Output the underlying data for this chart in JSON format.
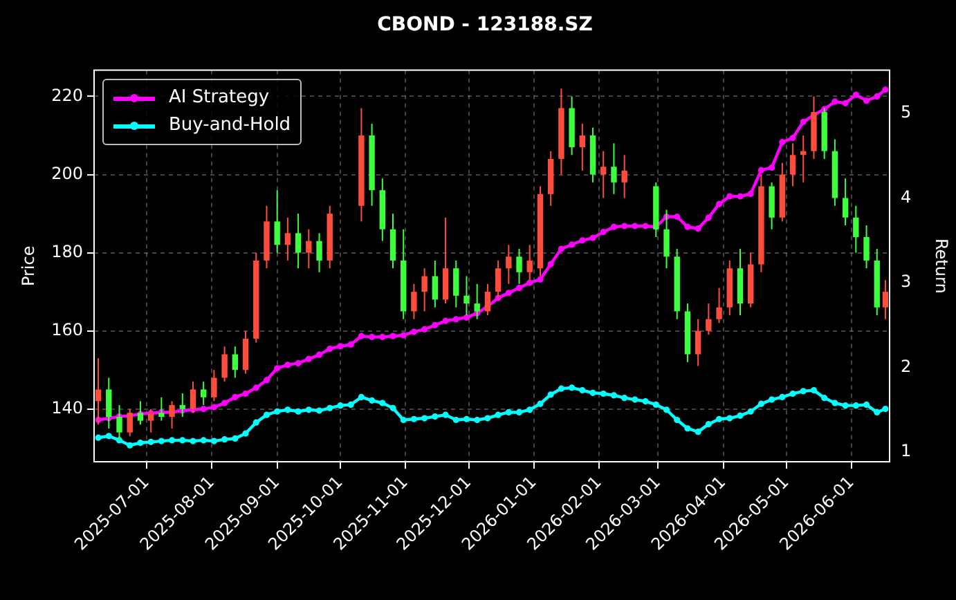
{
  "chart_data": {
    "type": "candlestick",
    "title": "CBOND - 123188.SZ",
    "ylabel": "Price",
    "y2label": "Return",
    "x": [
      "2025-06-08",
      "2025-06-13",
      "2025-06-18",
      "2025-06-23",
      "2025-06-28",
      "2025-07-03",
      "2025-07-08",
      "2025-07-13",
      "2025-07-18",
      "2025-07-23",
      "2025-07-28",
      "2025-08-02",
      "2025-08-07",
      "2025-08-12",
      "2025-08-17",
      "2025-08-22",
      "2025-08-27",
      "2025-09-01",
      "2025-09-06",
      "2025-09-11",
      "2025-09-16",
      "2025-09-21",
      "2025-09-26",
      "2025-10-01",
      "2025-10-06",
      "2025-10-11",
      "2025-10-16",
      "2025-10-21",
      "2025-10-26",
      "2025-10-31",
      "2025-11-05",
      "2025-11-10",
      "2025-11-15",
      "2025-11-20",
      "2025-11-25",
      "2025-11-30",
      "2025-12-05",
      "2025-12-10",
      "2025-12-15",
      "2025-12-20",
      "2025-12-25",
      "2025-12-30",
      "2026-01-04",
      "2026-01-09",
      "2026-01-14",
      "2026-01-19",
      "2026-01-24",
      "2026-01-29",
      "2026-02-03",
      "2026-02-08",
      "2026-02-13",
      "2026-02-18",
      "2026-02-23",
      "2026-02-28",
      "2026-03-05",
      "2026-03-10",
      "2026-03-15",
      "2026-03-20",
      "2026-03-25",
      "2026-03-30",
      "2026-04-04",
      "2026-04-09",
      "2026-04-14",
      "2026-04-19",
      "2026-04-24",
      "2026-04-29",
      "2026-05-04",
      "2026-05-09",
      "2026-05-14",
      "2026-05-19",
      "2026-05-24",
      "2026-05-29",
      "2026-06-03",
      "2026-06-08",
      "2026-06-13",
      "2026-06-17"
    ],
    "ohlc": [
      [
        142,
        153,
        136,
        145
      ],
      [
        145,
        148,
        135,
        138
      ],
      [
        138,
        141,
        132,
        134
      ],
      [
        134,
        140,
        133,
        139
      ],
      [
        139,
        142,
        136,
        137
      ],
      [
        137,
        140,
        134,
        139
      ],
      [
        139,
        143,
        137,
        138
      ],
      [
        138,
        142,
        135,
        141
      ],
      [
        141,
        144,
        138,
        140
      ],
      [
        140,
        147,
        139,
        145
      ],
      [
        145,
        147,
        141,
        143
      ],
      [
        143,
        150,
        142,
        148
      ],
      [
        148,
        156,
        147,
        154
      ],
      [
        154,
        156,
        148,
        150
      ],
      [
        150,
        160,
        149,
        158
      ],
      [
        158,
        180,
        157,
        178
      ],
      [
        178,
        192,
        176,
        188
      ],
      [
        188,
        196,
        180,
        182
      ],
      [
        182,
        189,
        178,
        185
      ],
      [
        185,
        190,
        176,
        180
      ],
      [
        180,
        186,
        176,
        183
      ],
      [
        183,
        185,
        175,
        178
      ],
      [
        178,
        192,
        176,
        190
      ],
      null,
      null,
      [
        192,
        217,
        188,
        210
      ],
      [
        210,
        213,
        192,
        196
      ],
      [
        196,
        199,
        183,
        186
      ],
      [
        186,
        190,
        176,
        178
      ],
      [
        178,
        186,
        163,
        165
      ],
      [
        165,
        172,
        163,
        170
      ],
      [
        170,
        176,
        165,
        174
      ],
      [
        174,
        178,
        166,
        168
      ],
      [
        168,
        189,
        167,
        176
      ],
      [
        176,
        178,
        166,
        169
      ],
      [
        169,
        174,
        164,
        167
      ],
      [
        167,
        172,
        163,
        165
      ],
      [
        165,
        172,
        164,
        170
      ],
      [
        170,
        178,
        168,
        176
      ],
      [
        176,
        182,
        172,
        179
      ],
      [
        179,
        181,
        172,
        175
      ],
      [
        175,
        182,
        173,
        178
      ],
      [
        176,
        197,
        174,
        195
      ],
      [
        195,
        206,
        192,
        204
      ],
      [
        204,
        222,
        200,
        217
      ],
      [
        217,
        220,
        205,
        207
      ],
      [
        207,
        213,
        201,
        210
      ],
      [
        210,
        212,
        198,
        200
      ],
      [
        200,
        206,
        194,
        202
      ],
      [
        202,
        208,
        195,
        198
      ],
      [
        198,
        205,
        194,
        201
      ],
      null,
      null,
      [
        197,
        198,
        184,
        186
      ],
      [
        186,
        191,
        176,
        179
      ],
      [
        179,
        181,
        163,
        165
      ],
      [
        165,
        167,
        152,
        154
      ],
      [
        154,
        163,
        151,
        160
      ],
      [
        160,
        167,
        159,
        163
      ],
      [
        163,
        171,
        162,
        166
      ],
      [
        166,
        178,
        164,
        176
      ],
      [
        176,
        181,
        164,
        167
      ],
      [
        167,
        180,
        166,
        177
      ],
      [
        177,
        200,
        175,
        197
      ],
      [
        197,
        198,
        186,
        189
      ],
      [
        189,
        203,
        188,
        200
      ],
      [
        200,
        208,
        197,
        205
      ],
      [
        205,
        210,
        198,
        206
      ],
      [
        206,
        220,
        204,
        216
      ],
      [
        216,
        217,
        204,
        206
      ],
      [
        206,
        209,
        192,
        194
      ],
      [
        194,
        199,
        187,
        189
      ],
      [
        189,
        192,
        180,
        184
      ],
      [
        184,
        187,
        176,
        178
      ],
      [
        178,
        181,
        164,
        166
      ],
      [
        166,
        173,
        163,
        170
      ]
    ],
    "colors": [
      "#ff4d3d",
      "#3dff3d",
      "#3dff3d",
      "#ff4d3d",
      "#3dff3d",
      "#ff4d3d",
      "#3dff3d",
      "#ff4d3d",
      "#3dff3d",
      "#ff4d3d",
      "#3dff3d",
      "#ff4d3d",
      "#ff4d3d",
      "#3dff3d",
      "#ff4d3d",
      "#ff4d3d",
      "#ff4d3d",
      "#3dff3d",
      "#ff4d3d",
      "#3dff3d",
      "#ff4d3d",
      "#3dff3d",
      "#ff4d3d",
      null,
      null,
      "#ff4d3d",
      "#3dff3d",
      "#3dff3d",
      "#3dff3d",
      "#3dff3d",
      "#ff4d3d",
      "#ff4d3d",
      "#3dff3d",
      "#ff4d3d",
      "#3dff3d",
      "#3dff3d",
      "#3dff3d",
      "#ff4d3d",
      "#ff4d3d",
      "#ff4d3d",
      "#3dff3d",
      "#ff4d3d",
      "#ff4d3d",
      "#ff4d3d",
      "#ff4d3d",
      "#3dff3d",
      "#ff4d3d",
      "#3dff3d",
      "#ff4d3d",
      "#3dff3d",
      "#ff4d3d",
      null,
      null,
      "#3dff3d",
      "#3dff3d",
      "#3dff3d",
      "#3dff3d",
      "#ff4d3d",
      "#ff4d3d",
      "#ff4d3d",
      "#ff4d3d",
      "#3dff3d",
      "#ff4d3d",
      "#ff4d3d",
      "#3dff3d",
      "#ff4d3d",
      "#ff4d3d",
      "#ff4d3d",
      "#ff4d3d",
      "#3dff3d",
      "#3dff3d",
      "#3dff3d",
      "#3dff3d",
      "#3dff3d",
      "#3dff3d",
      "#ff4d3d"
    ],
    "series": [
      {
        "name": "AI Strategy",
        "type": "line",
        "axis": "y2",
        "color": "#ff00ff",
        "values": [
          1.38,
          1.4,
          1.42,
          1.43,
          1.45,
          1.46,
          1.47,
          1.47,
          1.49,
          1.5,
          1.51,
          1.53,
          1.58,
          1.65,
          1.69,
          1.76,
          1.85,
          1.99,
          2.03,
          2.05,
          2.1,
          2.15,
          2.22,
          2.25,
          2.27,
          2.37,
          2.36,
          2.36,
          2.37,
          2.38,
          2.42,
          2.45,
          2.5,
          2.55,
          2.57,
          2.59,
          2.64,
          2.72,
          2.82,
          2.88,
          2.94,
          3.0,
          3.04,
          3.22,
          3.4,
          3.45,
          3.5,
          3.53,
          3.6,
          3.66,
          3.67,
          3.67,
          3.67,
          3.66,
          3.78,
          3.78,
          3.66,
          3.64,
          3.77,
          3.93,
          4.02,
          4.02,
          4.05,
          4.33,
          4.36,
          4.66,
          4.71,
          4.9,
          4.98,
          5.05,
          5.14,
          5.12,
          5.22,
          5.15,
          5.2,
          5.28
        ]
      },
      {
        "name": "Buy-and-Hold",
        "type": "line",
        "axis": "y2",
        "color": "#00ffff",
        "values": [
          1.17,
          1.19,
          1.14,
          1.08,
          1.11,
          1.12,
          1.13,
          1.14,
          1.14,
          1.13,
          1.14,
          1.13,
          1.15,
          1.16,
          1.22,
          1.35,
          1.44,
          1.48,
          1.5,
          1.48,
          1.5,
          1.49,
          1.52,
          1.55,
          1.56,
          1.65,
          1.61,
          1.58,
          1.52,
          1.38,
          1.39,
          1.4,
          1.42,
          1.44,
          1.38,
          1.39,
          1.38,
          1.4,
          1.44,
          1.47,
          1.47,
          1.5,
          1.57,
          1.68,
          1.75,
          1.76,
          1.73,
          1.7,
          1.69,
          1.67,
          1.64,
          1.62,
          1.6,
          1.56,
          1.5,
          1.38,
          1.28,
          1.24,
          1.33,
          1.39,
          1.4,
          1.43,
          1.48,
          1.57,
          1.62,
          1.65,
          1.69,
          1.72,
          1.73,
          1.64,
          1.58,
          1.55,
          1.55,
          1.56,
          1.47,
          1.51
        ]
      }
    ],
    "xlim": [
      "2025-06-06",
      "2026-06-19"
    ],
    "xticks": [
      "2025-07-01",
      "2025-08-01",
      "2025-09-01",
      "2025-10-01",
      "2025-11-01",
      "2025-12-01",
      "2026-01-01",
      "2026-02-01",
      "2026-03-01",
      "2026-04-01",
      "2026-05-01",
      "2026-06-01"
    ],
    "ylim": [
      126.5,
      226.7
    ],
    "yticks": [
      140,
      160,
      180,
      200,
      220
    ],
    "y2lim": [
      0.886,
      5.51
    ],
    "y2ticks": [
      1,
      2,
      3,
      4,
      5
    ],
    "grid": true,
    "legend": "top left",
    "marker": "circle"
  }
}
